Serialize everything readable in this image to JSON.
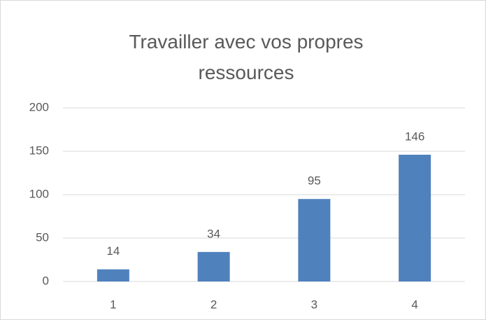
{
  "chart_data": {
    "type": "bar",
    "title": "Travailler avec vos propres ressources",
    "categories": [
      "1",
      "2",
      "3",
      "4"
    ],
    "values": [
      14,
      34,
      95,
      146
    ],
    "color": "#4f81bd",
    "ylim": [
      0,
      200
    ],
    "yticks": [
      0,
      50,
      100,
      150,
      200
    ],
    "grid": true
  }
}
